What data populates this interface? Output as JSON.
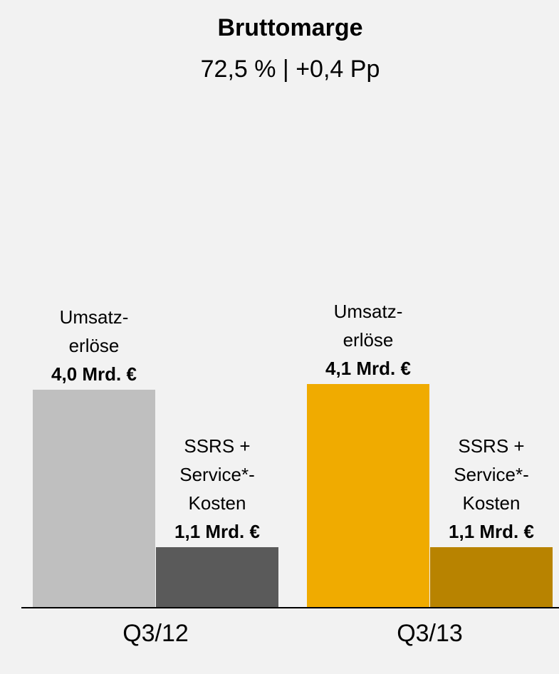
{
  "chart_data": {
    "type": "bar",
    "title": "Bruttomarge",
    "subtitle": "72,5 % | +0,4 Pp",
    "categories": [
      "Q3/12",
      "Q3/13"
    ],
    "series": [
      {
        "name": "Umsatz-\nerlöse",
        "colors": [
          "#bfbfbf",
          "#f0ab00"
        ],
        "values": [
          4.0,
          4.1
        ],
        "value_labels": [
          "4,0 Mrd. €",
          "4,1 Mrd. €"
        ]
      },
      {
        "name": "SSRS +\nService*-\nKosten",
        "colors": [
          "#5a5a5a",
          "#b88300"
        ],
        "values": [
          1.1,
          1.1
        ],
        "value_labels": [
          "1,1 Mrd. €",
          "1,1 Mrd. €"
        ]
      }
    ]
  }
}
